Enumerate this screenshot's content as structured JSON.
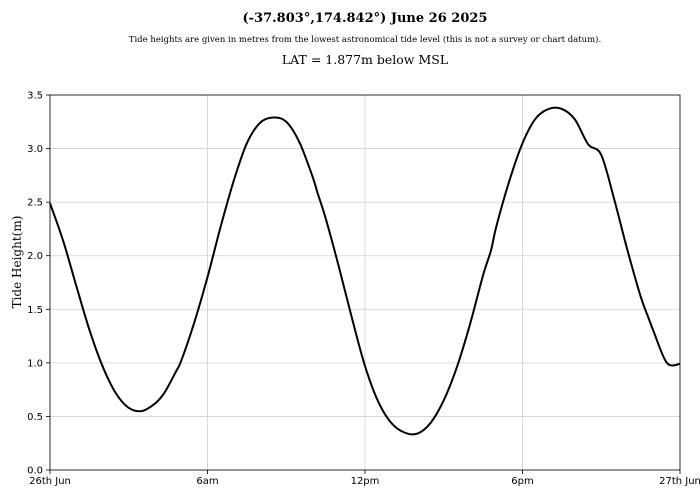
{
  "chart_data": {
    "type": "line",
    "title": "(-37.803°,174.842°) June 26 2025",
    "subtitle": "Tide heights are given in metres from the lowest astronomical tide level (this is not a survey or chart datum).",
    "note": "LAT = 1.877m below MSL",
    "xlabel": "",
    "ylabel": "Tide Height(m)",
    "xlim": [
      0,
      24
    ],
    "ylim": [
      0,
      3.5
    ],
    "grid": true,
    "x_ticks": [
      {
        "value": 0,
        "label": "26th Jun"
      },
      {
        "value": 6,
        "label": "6am"
      },
      {
        "value": 12,
        "label": "12pm"
      },
      {
        "value": 18,
        "label": "6pm"
      },
      {
        "value": 24,
        "label": "27th Jun"
      }
    ],
    "y_ticks": [
      {
        "value": 0,
        "label": "0.0"
      },
      {
        "value": 0.5,
        "label": "0.5"
      },
      {
        "value": 1.0,
        "label": "1.0"
      },
      {
        "value": 1.5,
        "label": "1.5"
      },
      {
        "value": 2.0,
        "label": "2.0"
      },
      {
        "value": 2.5,
        "label": "2.5"
      },
      {
        "value": 3.0,
        "label": "3.0"
      },
      {
        "value": 3.5,
        "label": "3.5"
      }
    ],
    "series": [
      {
        "line_color": "#000000",
        "x": [
          0,
          0.5,
          1,
          1.5,
          2,
          2.5,
          3,
          3.5,
          4,
          4.3,
          4.5,
          4.8,
          5,
          5.5,
          6,
          6.5,
          7,
          7.5,
          8,
          8.5,
          9,
          9.5,
          10,
          10.2,
          10.5,
          11,
          11.5,
          12,
          12.5,
          13,
          13.5,
          14,
          14.5,
          15,
          15.5,
          16,
          16.5,
          16.8,
          17,
          17.5,
          18,
          18.5,
          19,
          19.5,
          20,
          20.5,
          21,
          21.5,
          22,
          22.5,
          22.8,
          23,
          23.5,
          24
        ],
        "y": [
          2.49,
          2.14,
          1.72,
          1.31,
          0.97,
          0.72,
          0.58,
          0.55,
          0.62,
          0.7,
          0.78,
          0.92,
          1.02,
          1.38,
          1.8,
          2.27,
          2.7,
          3.05,
          3.24,
          3.29,
          3.25,
          3.06,
          2.74,
          2.58,
          2.35,
          1.9,
          1.42,
          0.97,
          0.64,
          0.44,
          0.35,
          0.34,
          0.44,
          0.65,
          0.96,
          1.36,
          1.82,
          2.05,
          2.27,
          2.7,
          3.05,
          3.28,
          3.37,
          3.37,
          3.27,
          3.04,
          2.94,
          2.52,
          2.05,
          1.62,
          1.42,
          1.29,
          1.0,
          0.99
        ]
      }
    ]
  }
}
